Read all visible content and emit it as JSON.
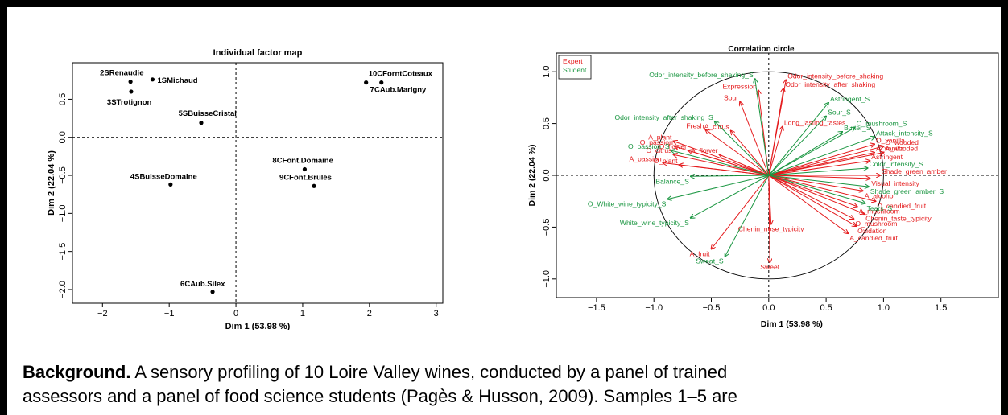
{
  "chart_data": [
    {
      "type": "scatter",
      "title": "Individual factor map",
      "xlabel": "Dim 1 (53.98 %)",
      "ylabel": "Dim 2 (22.04 %)",
      "xlim": [
        -2.45,
        3.1
      ],
      "ylim": [
        -2.18,
        0.98
      ],
      "xticks": [
        -2,
        -1,
        0,
        1,
        2,
        3
      ],
      "xtick_labels": [
        "−2",
        "−1",
        "0",
        "1",
        "2",
        "3"
      ],
      "yticks": [
        -2.0,
        -1.5,
        -1.0,
        -0.5,
        0.0,
        0.5
      ],
      "ytick_labels": [
        "−2.0",
        "−1.5",
        "−1.0",
        "−0.5",
        "0.0",
        "0.5"
      ],
      "points": [
        {
          "label": "2SRenaudie",
          "x": -1.58,
          "y": 0.73
        },
        {
          "label": "1SMichaud",
          "x": -1.25,
          "y": 0.76
        },
        {
          "label": "3STrotignon",
          "x": -1.57,
          "y": 0.6
        },
        {
          "label": "5SBuisseCristal",
          "x": -0.52,
          "y": 0.19
        },
        {
          "label": "10CForntCoteaux",
          "x": 2.18,
          "y": 0.72
        },
        {
          "label": "7CAub.Marigny",
          "x": 1.95,
          "y": 0.72
        },
        {
          "label": "4SBuisseDomaine",
          "x": -0.98,
          "y": -0.62
        },
        {
          "label": "8CFont.Domaine",
          "x": 1.03,
          "y": -0.42
        },
        {
          "label": "9CFont.Brûlés",
          "x": 1.17,
          "y": -0.64
        },
        {
          "label": "6CAub.Silex",
          "x": -0.35,
          "y": -2.03
        }
      ]
    },
    {
      "type": "scatter",
      "title": "Correlation circle",
      "xlabel": "Dim 1 (53.98 %)",
      "ylabel": "Dim 2 (22.04 %)",
      "xlim": [
        -1.85,
        2.0
      ],
      "ylim": [
        -1.18,
        1.18
      ],
      "xticks": [
        -1.5,
        -1.0,
        -0.5,
        0.0,
        0.5,
        1.0,
        1.5
      ],
      "xtick_labels": [
        "−1.5",
        "−1.0",
        "−0.5",
        "0.0",
        "0.5",
        "1.0",
        "1.5"
      ],
      "yticks": [
        -1.0,
        -0.5,
        0.0,
        0.5,
        1.0
      ],
      "ytick_labels": [
        "−1.0",
        "−0.5",
        "0.0",
        "0.5",
        "1.0"
      ],
      "legend": {
        "position": "top-left",
        "entries": [
          {
            "name": "Expert",
            "color": "#e41a1c"
          },
          {
            "name": "Student",
            "color": "#1a9641"
          }
        ]
      },
      "series": [
        {
          "name": "Expert",
          "color": "#e41a1c",
          "vectors": [
            {
              "label": "Odor_intensity_before_shaking",
              "x": 0.15,
              "y": 0.92
            },
            {
              "label": "Odor_intensity_after_shaking",
              "x": 0.13,
              "y": 0.84
            },
            {
              "label": "Expression",
              "x": -0.09,
              "y": 0.82
            },
            {
              "label": "Sour",
              "x": -0.25,
              "y": 0.71
            },
            {
              "label": "Long_lasting_tastes",
              "x": 0.12,
              "y": 0.47
            },
            {
              "label": "Fresh",
              "x": -0.55,
              "y": 0.44
            },
            {
              "label": "A_citrus",
              "x": -0.33,
              "y": 0.43
            },
            {
              "label": "A_plant",
              "x": -0.83,
              "y": 0.33
            },
            {
              "label": "O_passion",
              "x": -0.82,
              "y": 0.28
            },
            {
              "label": "O_flower",
              "x": -0.7,
              "y": 0.24
            },
            {
              "label": "O_citrus",
              "x": -0.83,
              "y": 0.2
            },
            {
              "label": "A_flower",
              "x": -0.43,
              "y": 0.2
            },
            {
              "label": "A_passion",
              "x": -0.92,
              "y": 0.12
            },
            {
              "label": "O_plant",
              "x": -0.78,
              "y": 0.1
            },
            {
              "label": "O_vanilla",
              "x": 0.92,
              "y": 0.3
            },
            {
              "label": "O_wooded",
              "x": 1.0,
              "y": 0.28
            },
            {
              "label": "A_vanilla",
              "x": 0.92,
              "y": 0.22
            },
            {
              "label": "A_wooded",
              "x": 1.0,
              "y": 0.22
            },
            {
              "label": "Astringent",
              "x": 0.88,
              "y": 0.14
            },
            {
              "label": "Shade_green_amber",
              "x": 0.97,
              "y": 0.0
            },
            {
              "label": "Visual_intensity",
              "x": 0.88,
              "y": -0.03
            },
            {
              "label": "A_alcohol",
              "x": 0.82,
              "y": -0.15
            },
            {
              "label": "O_candied_fruit",
              "x": 0.93,
              "y": -0.25
            },
            {
              "label": "A_mushroom",
              "x": 0.77,
              "y": -0.3
            },
            {
              "label": "Chenin_taste_typicity",
              "x": 0.83,
              "y": -0.37
            },
            {
              "label": "O_mushroom",
              "x": 0.74,
              "y": -0.42
            },
            {
              "label": "Oxidation",
              "x": 0.76,
              "y": -0.49
            },
            {
              "label": "A_candied_fruit",
              "x": 0.69,
              "y": -0.56
            },
            {
              "label": "Chenin_nose_typicity",
              "x": 0.02,
              "y": -0.47
            },
            {
              "label": "A_fruit",
              "x": -0.5,
              "y": -0.71
            },
            {
              "label": "Sweet",
              "x": 0.01,
              "y": -0.84
            }
          ]
        },
        {
          "name": "Student",
          "color": "#1a9641",
          "vectors": [
            {
              "label": "Odor_intensity_before_shaking_S",
              "x": -0.12,
              "y": 0.93
            },
            {
              "label": "Odor_intensity_after_shaking_S",
              "x": -0.47,
              "y": 0.52
            },
            {
              "label": "Astringent_S",
              "x": 0.52,
              "y": 0.7
            },
            {
              "label": "Sour_S",
              "x": 0.5,
              "y": 0.57
            },
            {
              "label": "O_mushroom_S",
              "x": 0.75,
              "y": 0.46
            },
            {
              "label": "Butter_S",
              "x": 0.64,
              "y": 0.42
            },
            {
              "label": "Attack_intensity_S",
              "x": 0.92,
              "y": 0.37
            },
            {
              "label": "Color_intensity_S",
              "x": 0.86,
              "y": 0.07
            },
            {
              "label": "Shade_green_amber_S",
              "x": 0.87,
              "y": -0.11
            },
            {
              "label": "Tears_S",
              "x": 0.84,
              "y": -0.27
            },
            {
              "label": "O_passion_S",
              "x": -0.85,
              "y": 0.24
            },
            {
              "label": "Balance_S",
              "x": -0.68,
              "y": -0.01
            },
            {
              "label": "O_White_wine_typicity_S",
              "x": -0.88,
              "y": -0.23
            },
            {
              "label": "White_wine_typicity_S",
              "x": -0.68,
              "y": -0.41
            },
            {
              "label": "Sweat_S",
              "x": -0.38,
              "y": -0.78
            }
          ]
        }
      ]
    }
  ],
  "background": {
    "heading": "Background.",
    "line1": " A sensory profiling of 10 Loire Valley wines, conducted by a panel of trained",
    "line2": "assessors and a panel of food science students (Pagès & Husson, 2009). Samples 1–5 are"
  }
}
